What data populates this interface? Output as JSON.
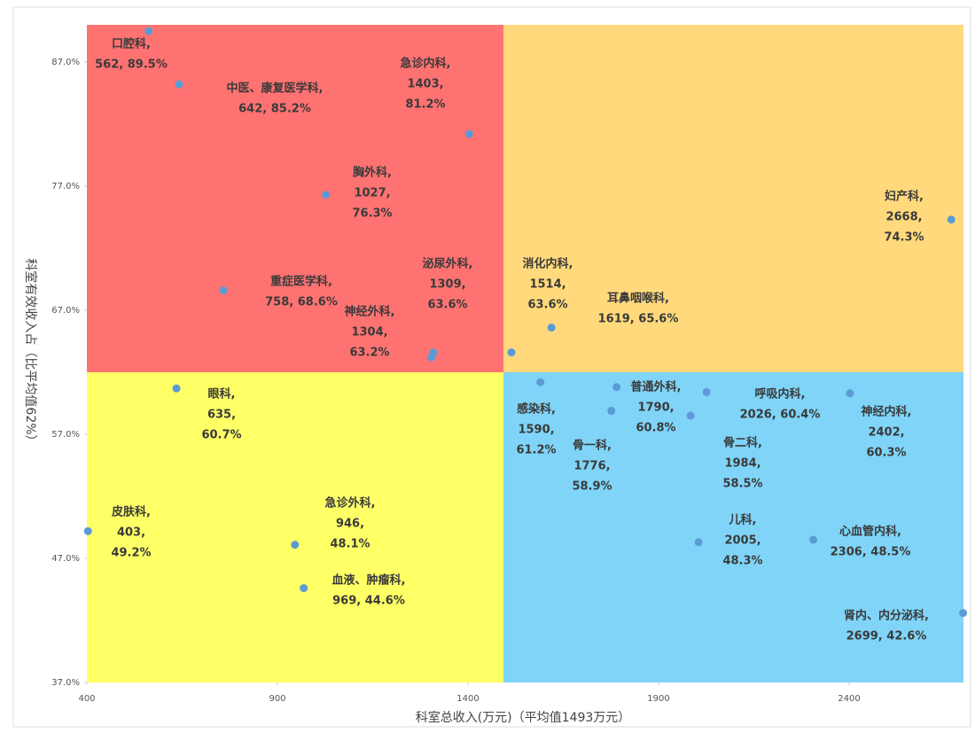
{
  "chart_data": {
    "type": "scatter",
    "xlabel": "科室总收入(万元)（平均值1493万元）",
    "ylabel": "科室有效收入占（比平均值62%）",
    "xlim": [
      400,
      2700
    ],
    "ylim": [
      37,
      90
    ],
    "xticks": [
      400,
      900,
      1400,
      1900,
      2400
    ],
    "yticks": [
      {
        "value": 37,
        "label": "37.0%"
      },
      {
        "value": 47,
        "label": "47.0%"
      },
      {
        "value": 57,
        "label": "57.0%"
      },
      {
        "value": 67,
        "label": "67.0%"
      },
      {
        "value": 77,
        "label": "77.0%"
      },
      {
        "value": 87,
        "label": "87.0%"
      }
    ],
    "x_mean": 1493,
    "y_mean": 62,
    "quadrant_colors": {
      "top_left": "#ff7272",
      "top_right": "#ffd97c",
      "bottom_left": "#ffff66",
      "bottom_right": "#7fd4f8"
    },
    "color": "#5b9bd5",
    "categories": [
      "口腔科",
      "中医、康复医学科",
      "急诊内科",
      "胸外科",
      "妇产科",
      "重症医学科",
      "泌尿外科",
      "神经外科",
      "消化内科",
      "耳鼻咽喉科",
      "眼科",
      "感染科",
      "普通外科",
      "骨一科",
      "呼吸内科",
      "神经内科",
      "骨二科",
      "皮肤科",
      "急诊外科",
      "儿科",
      "心血管内科",
      "血液、肿瘤科",
      "肾内、内分泌科"
    ],
    "x": [
      562,
      642,
      1403,
      1027,
      2668,
      758,
      1309,
      1304,
      1514,
      1619,
      635,
      1590,
      1790,
      1776,
      2026,
      2402,
      1984,
      403,
      946,
      2005,
      2306,
      969,
      2699
    ],
    "values": [
      89.5,
      85.2,
      81.2,
      76.3,
      74.3,
      68.6,
      63.6,
      63.2,
      63.6,
      65.6,
      60.7,
      61.2,
      60.8,
      58.9,
      60.4,
      60.3,
      58.5,
      49.2,
      48.1,
      48.3,
      48.5,
      44.6,
      42.6
    ],
    "value_labels": [
      [
        "口腔科,",
        "562, 89.5%"
      ],
      [
        "中医、康复医学科,",
        "642, 85.2%"
      ],
      [
        "急诊内科,",
        "1403,",
        "81.2%"
      ],
      [
        "胸外科,",
        "1027,",
        "76.3%"
      ],
      [
        "妇产科,",
        "2668,",
        "74.3%"
      ],
      [
        "重症医学科,",
        "758, 68.6%"
      ],
      [
        "泌尿外科,",
        "1309,",
        "63.6%"
      ],
      [
        "神经外科,",
        "1304,",
        "63.2%"
      ],
      [
        "消化内科,",
        "1514,",
        "63.6%"
      ],
      [
        "耳鼻咽喉科,",
        "1619, 65.6%"
      ],
      [
        "眼科,",
        "635,",
        "60.7%"
      ],
      [
        "感染科,",
        "1590,",
        "61.2%"
      ],
      [
        "普通外科,",
        "1790,",
        "60.8%"
      ],
      [
        "骨一科,",
        "1776,",
        "58.9%"
      ],
      [
        "呼吸内科,",
        "2026, 60.4%"
      ],
      [
        "神经内科,",
        "2402,",
        "60.3%"
      ],
      [
        "骨二科,",
        "1984,",
        "58.5%"
      ],
      [
        "皮肤科,",
        "403,",
        "49.2%"
      ],
      [
        "急诊外科,",
        "946,",
        "48.1%"
      ],
      [
        "儿科,",
        "2005,",
        "48.3%"
      ],
      [
        "心血管内科,",
        "2306, 48.5%"
      ],
      [
        "血液、肿瘤科,",
        "969, 44.6%"
      ],
      [
        "肾内、内分泌科,",
        "2699, 42.6%"
      ]
    ]
  }
}
